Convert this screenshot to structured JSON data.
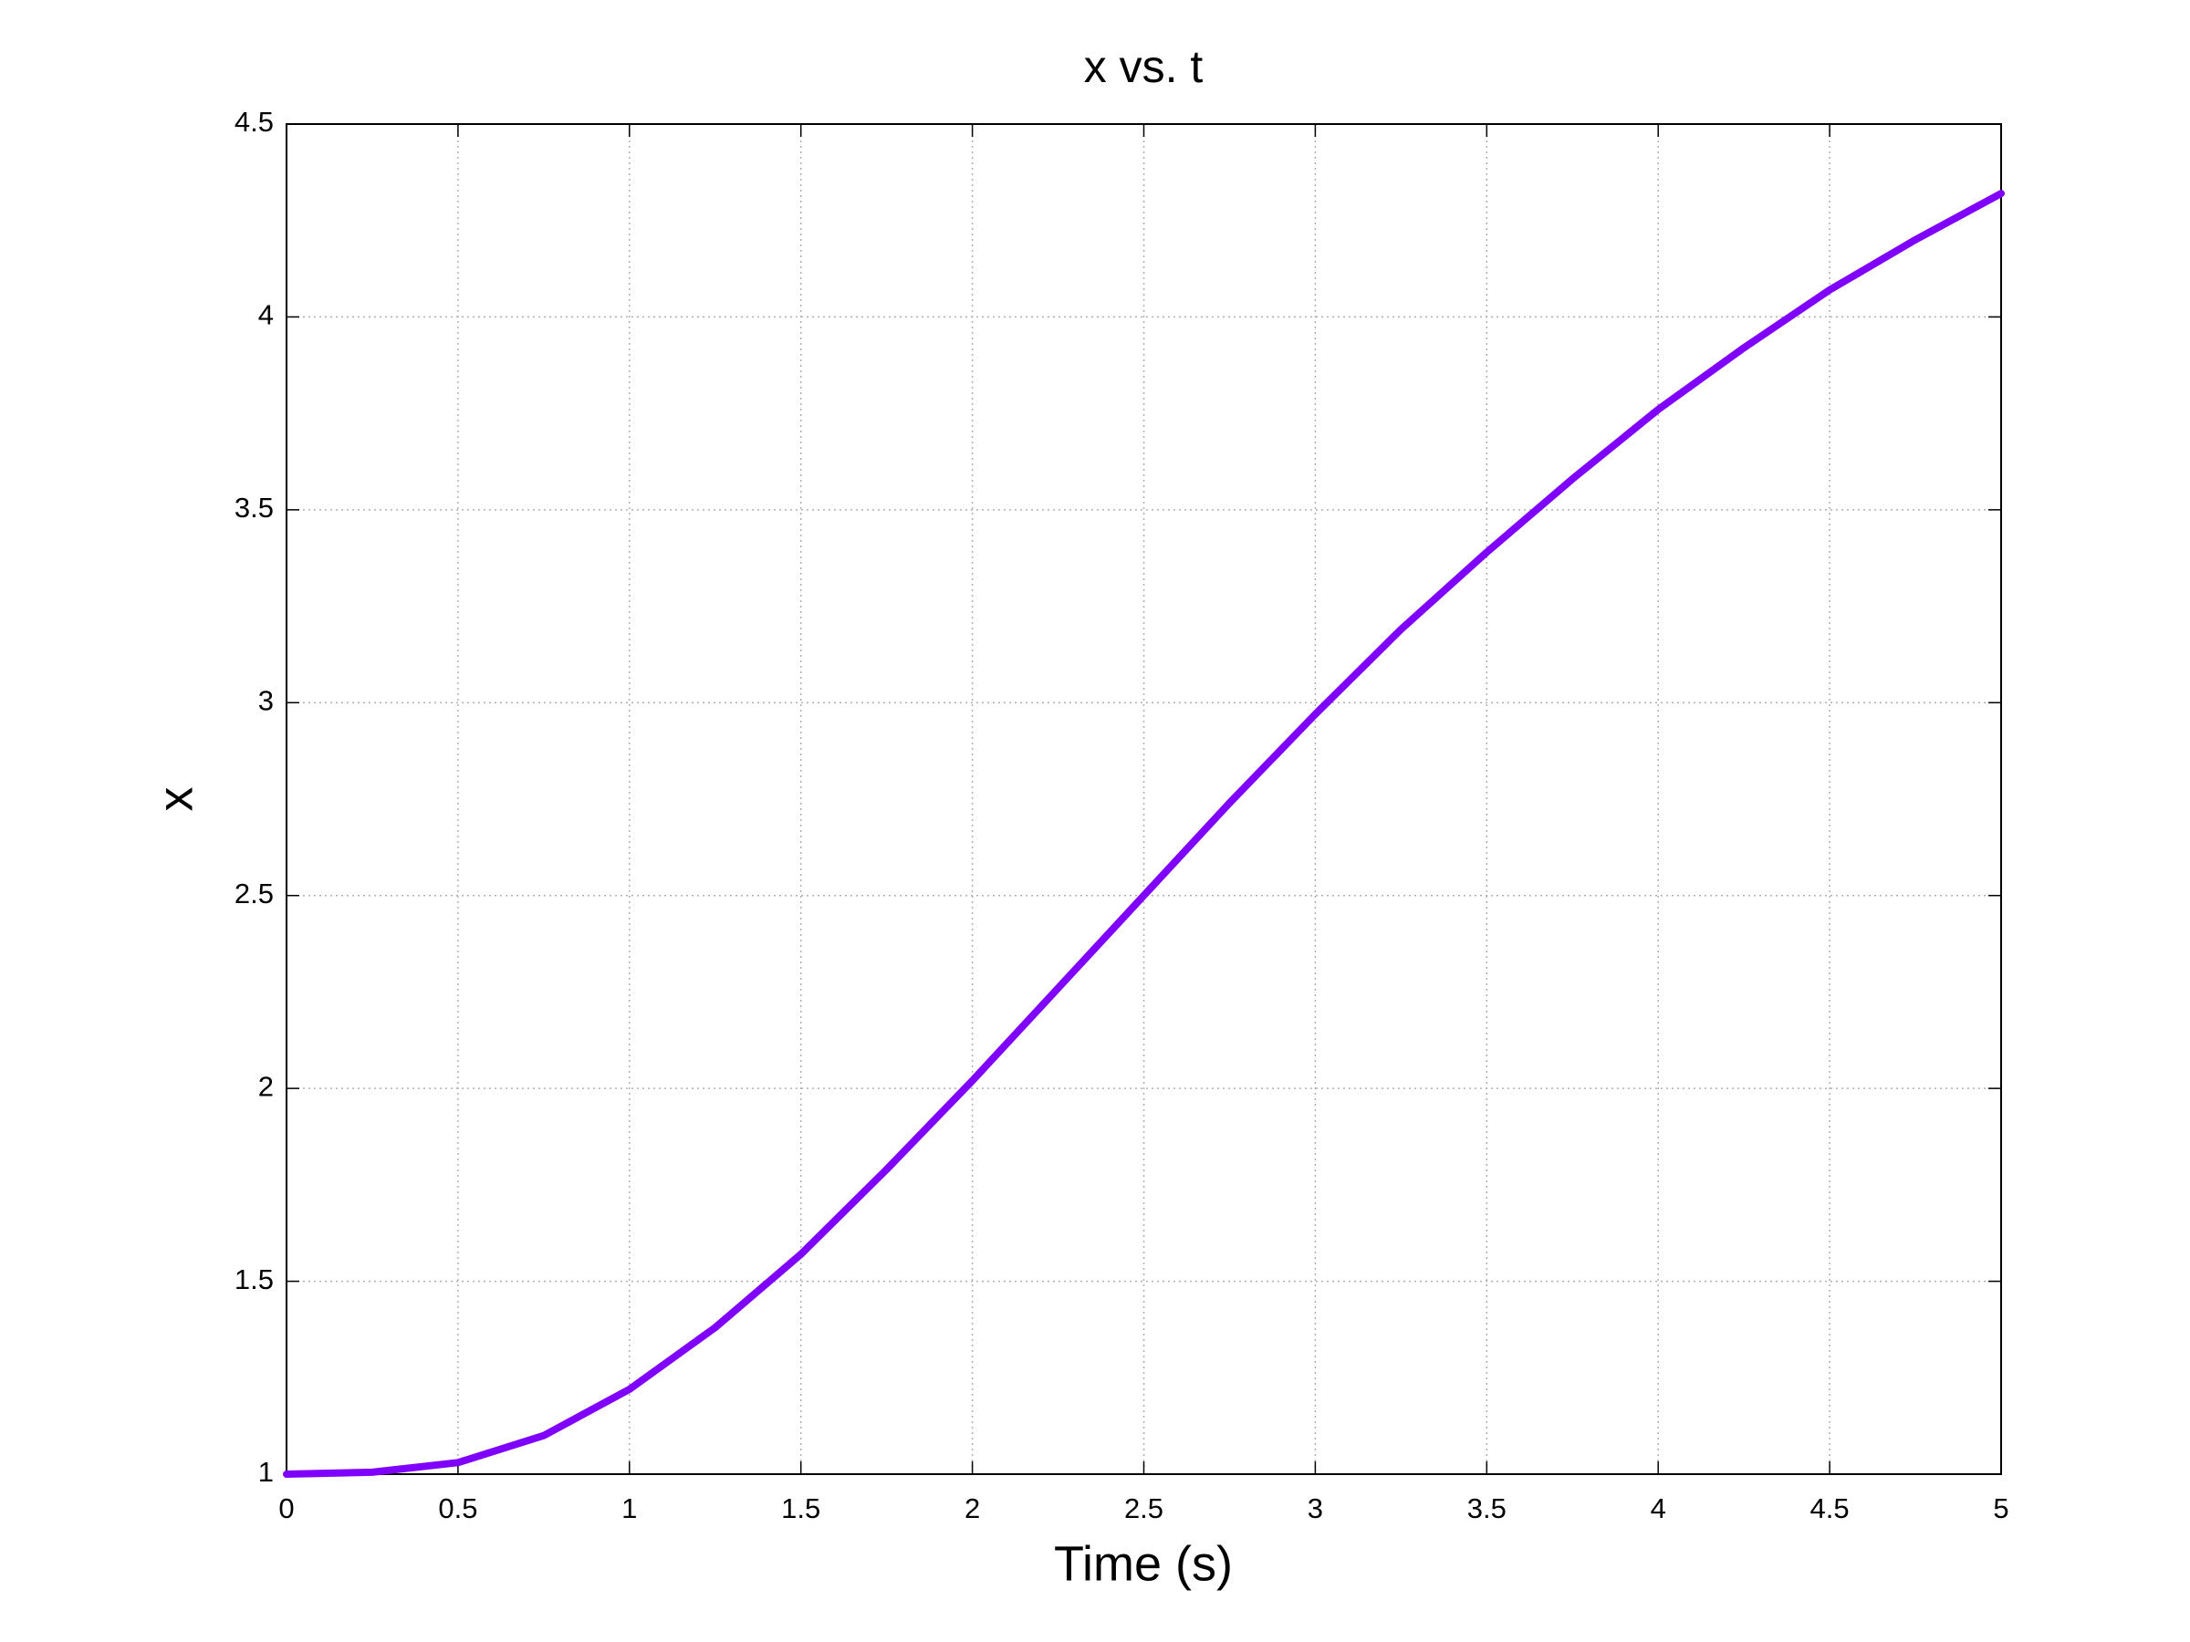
{
  "chart_data": {
    "type": "line",
    "title": "x vs. t",
    "x_label": "Time (s)",
    "y_label": "x",
    "x": [
      0,
      0.25,
      0.5,
      0.75,
      1,
      1.25,
      1.5,
      1.75,
      2,
      2.25,
      2.5,
      2.75,
      3,
      3.25,
      3.5,
      3.75,
      4,
      4.25,
      4.5,
      4.75,
      5
    ],
    "series": [
      {
        "color": "#8000ff",
        "values": [
          1.0,
          1.005,
          1.03,
          1.1,
          1.22,
          1.38,
          1.57,
          1.79,
          2.02,
          2.26,
          2.5,
          2.74,
          2.97,
          3.19,
          3.39,
          3.58,
          3.76,
          3.92,
          4.07,
          4.2,
          4.32
        ]
      }
    ],
    "xlim": [
      0,
      5
    ],
    "xticks": [
      0,
      0.5,
      1,
      1.5,
      2,
      2.5,
      3,
      3.5,
      4,
      4.5,
      5
    ],
    "ylim": [
      1,
      4.5
    ],
    "yticks": [
      1,
      1.5,
      2,
      2.5,
      3,
      3.5,
      4,
      4.5
    ],
    "grid": true
  }
}
